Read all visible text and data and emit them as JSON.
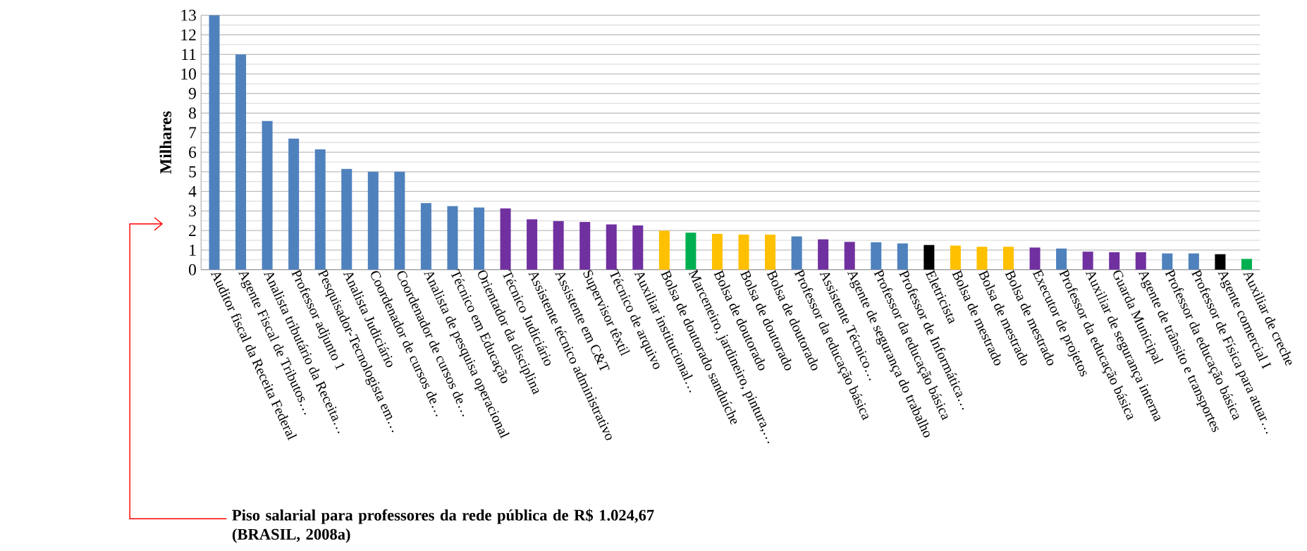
{
  "chart_data": {
    "type": "bar",
    "ylabel": "Milhares",
    "categories": [
      "Auditor fiscal da Receita Federal",
      "Agente Fiscal de Tributos…",
      "Analista tributário da Receita…",
      "Professor adjunto 1",
      "Pesquisador-Tecnologista em…",
      "Analista Judiciário",
      "Coordenador de cursos de…",
      "Coordenador de cursos de…",
      "Analista de pesquisa operacional",
      "Técnico em Educação",
      "Orientador da disciplina",
      "Técnico Judiciário",
      "Assistente técnico administrativo",
      "Assistente em C&T",
      "Supervisor têxtil",
      "Técnico de arquivo",
      "Auxiliar institucional…",
      "Bolsa de doutorado sanduíche",
      "Marceneiro, jardineiro, pintura,…",
      "Bolsa de doutorado",
      "Bolsa de doutorado",
      "Bolsa de doutorado",
      "Professor da educação básica",
      "Assistente Técnico…",
      "Agente de segurança do trabalho",
      "Professor da educação básica",
      "Professor de Informática…",
      "Eletricista",
      "Bolsa de mestrado",
      "Bolsa de mestrado",
      "Bolsa de mestrado",
      "Executor de projetos",
      "Professor da educação básica",
      "Auxiliar de segurança interna",
      "Guarda Municipal",
      "Agente de trânsito e transportes",
      "Professor da educação básica",
      "Professor de Física para atuar…",
      "Agente comercial I",
      "Auxiliar de creche"
    ],
    "values": [
      13.0,
      11.0,
      7.6,
      6.7,
      6.15,
      5.15,
      5.0,
      5.0,
      3.4,
      3.25,
      3.18,
      3.13,
      2.57,
      2.48,
      2.44,
      2.31,
      2.26,
      1.99,
      1.89,
      1.83,
      1.79,
      1.79,
      1.7,
      1.55,
      1.42,
      1.4,
      1.34,
      1.26,
      1.23,
      1.17,
      1.17,
      1.13,
      1.08,
      0.92,
      0.89,
      0.89,
      0.83,
      0.83,
      0.79,
      0.55
    ],
    "colors": [
      "#4f81bd",
      "#4f81bd",
      "#4f81bd",
      "#4f81bd",
      "#4f81bd",
      "#4f81bd",
      "#4f81bd",
      "#4f81bd",
      "#4f81bd",
      "#4f81bd",
      "#4f81bd",
      "#7030a0",
      "#7030a0",
      "#7030a0",
      "#7030a0",
      "#7030a0",
      "#7030a0",
      "#ffc000",
      "#00b050",
      "#ffc000",
      "#ffc000",
      "#ffc000",
      "#4f81bd",
      "#7030a0",
      "#7030a0",
      "#4f81bd",
      "#4f81bd",
      "#000000",
      "#ffc000",
      "#ffc000",
      "#ffc000",
      "#7030a0",
      "#4f81bd",
      "#7030a0",
      "#7030a0",
      "#7030a0",
      "#4f81bd",
      "#4f81bd",
      "#000000",
      "#00b050"
    ],
    "ylim": [
      0,
      13
    ],
    "yticks": [
      0,
      1,
      2,
      3,
      4,
      5,
      6,
      7,
      8,
      9,
      10,
      11,
      12,
      13
    ],
    "grid": "y",
    "annotations": [
      "Piso salarial para professores da rede pública de R$ 1.024,67 (BRASIL, 2008a)"
    ]
  }
}
